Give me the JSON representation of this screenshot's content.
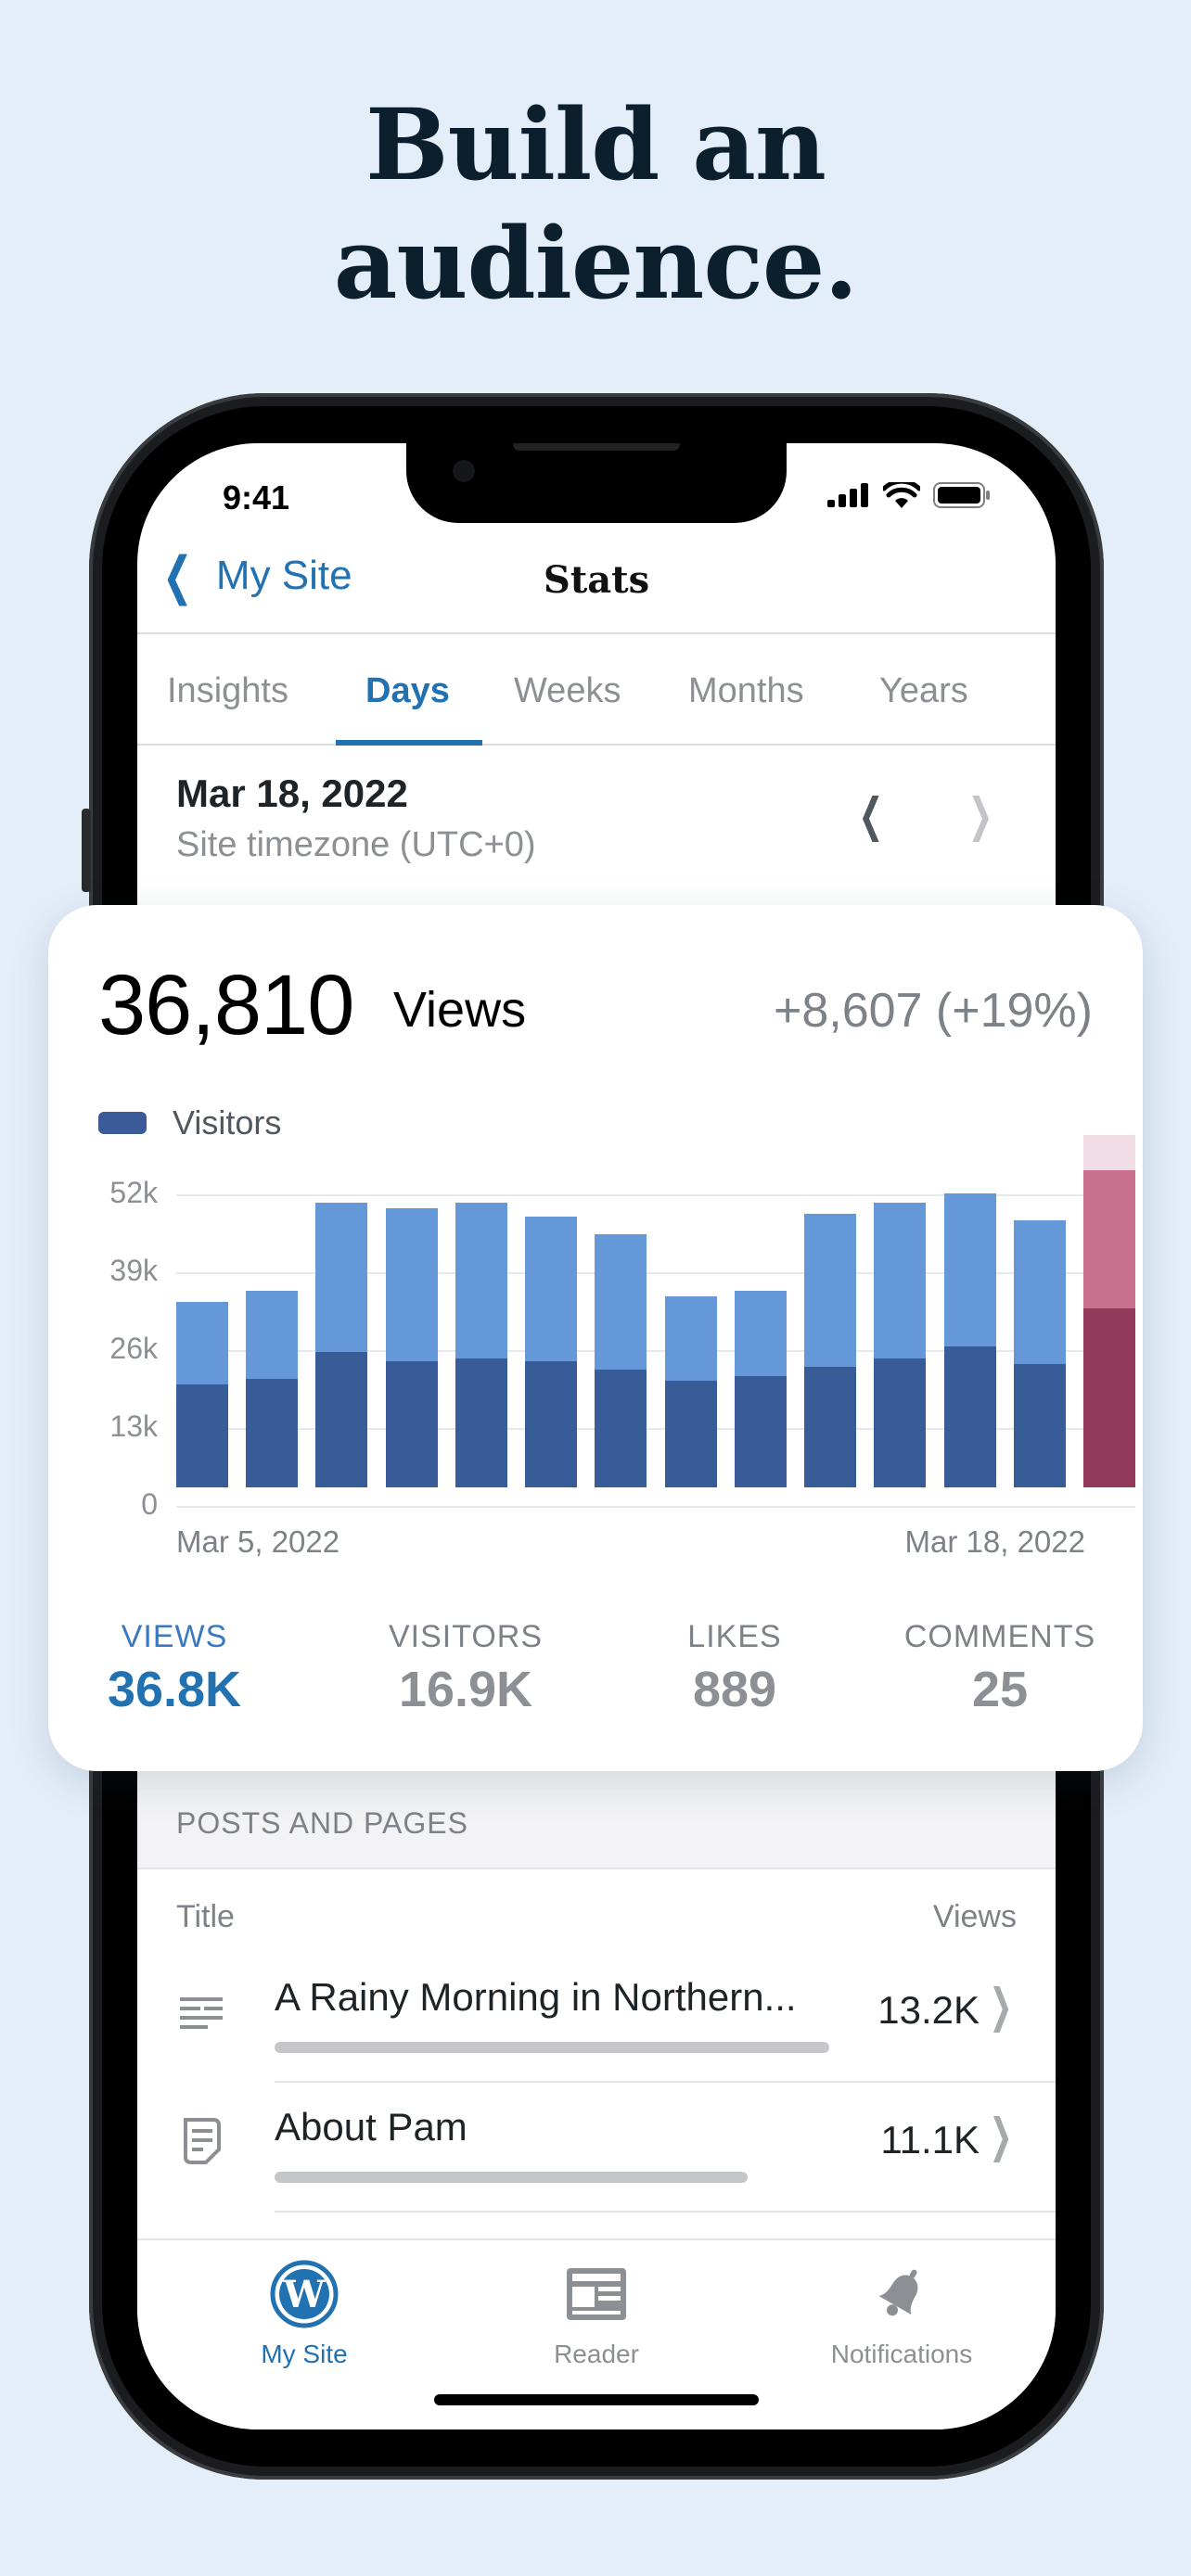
{
  "headline": {
    "line1": "Build an",
    "line2": "audience."
  },
  "status": {
    "time": "9:41"
  },
  "nav": {
    "back_label": "My Site",
    "title": "Stats"
  },
  "tabs": [
    {
      "label": "Insights"
    },
    {
      "label": "Days"
    },
    {
      "label": "Weeks"
    },
    {
      "label": "Months"
    },
    {
      "label": "Years"
    }
  ],
  "active_tab": "Days",
  "date": {
    "main": "Mar 18, 2022",
    "sub": "Site timezone (UTC+0)"
  },
  "summary": {
    "count": "36,810",
    "label": "Views",
    "delta": "+8,607 (+19%)"
  },
  "legend": {
    "label": "Visitors",
    "color": "#3a5a98"
  },
  "chart_data": {
    "type": "bar",
    "x_start_label": "Mar 5, 2022",
    "x_end_label": "Mar 18, 2022",
    "y_ticks": [
      "52k",
      "39k",
      "26k",
      "13k",
      "0"
    ],
    "ylim": [
      0,
      59000
    ],
    "series": [
      {
        "name": "Visitors",
        "values": [
          17500,
          18500,
          23000,
          21500,
          22000,
          21500,
          20000,
          18200,
          19000,
          20500,
          22000,
          24000,
          21000,
          30500
        ]
      }
    ],
    "views_totals": [
      31500,
      33500,
      48500,
      47500,
      48500,
      46000,
      43000,
      32500,
      33500,
      46500,
      48500,
      50000,
      45500,
      54000
    ],
    "selected_extra_total": 60000,
    "colors": {
      "views": "#6598d8",
      "visitors": "#385c97",
      "selected_views": "#c9708f",
      "selected_visitors": "#933a5c",
      "selected_top": "#f0dde5"
    }
  },
  "metrics": [
    {
      "label": "VIEWS",
      "value": "36.8K"
    },
    {
      "label": "VISITORS",
      "value": "16.9K"
    },
    {
      "label": "LIKES",
      "value": "889"
    },
    {
      "label": "COMMENTS",
      "value": "25"
    }
  ],
  "posts": {
    "section_title": "POSTS AND PAGES",
    "col_title": "Title",
    "col_views": "Views",
    "rows": [
      {
        "icon": "post-icon",
        "title": "A Rainy Morning in Northern...",
        "views": "13.2K",
        "fraction": 1.0
      },
      {
        "icon": "page-icon",
        "title": "About Pam",
        "views": "11.1K",
        "fraction": 0.85
      }
    ]
  },
  "tabbar": [
    {
      "icon": "wordpress-icon",
      "label": "My Site"
    },
    {
      "icon": "reader-icon",
      "label": "Reader"
    },
    {
      "icon": "bell-icon",
      "label": "Notifications"
    }
  ]
}
